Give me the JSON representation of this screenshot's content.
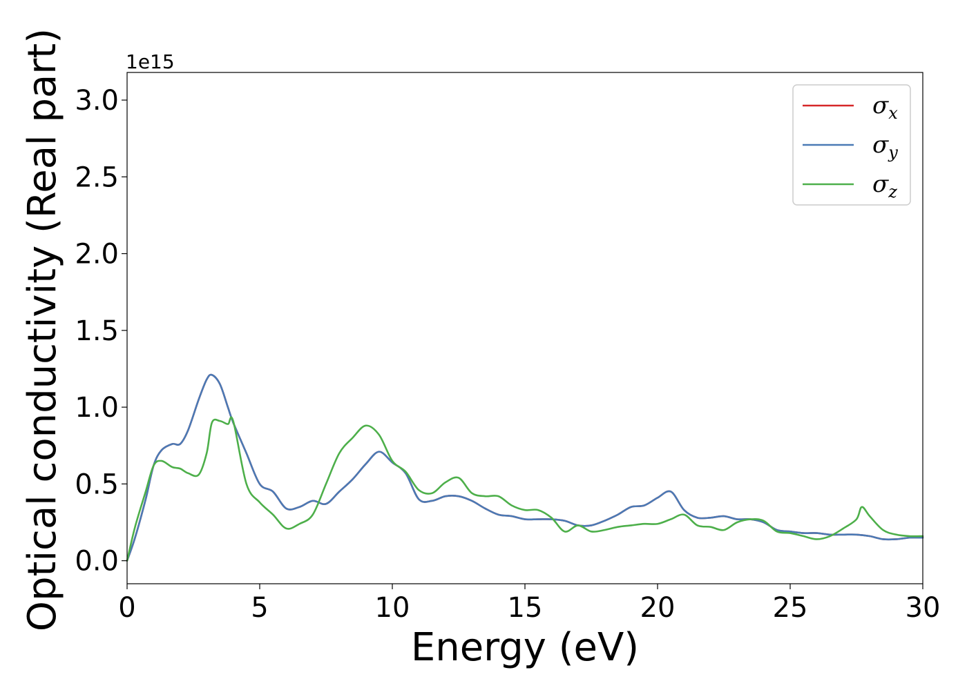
{
  "chart_data": {
    "type": "line",
    "xlabel": "Energy (eV)",
    "ylabel": "Optical conductivity (Real part)",
    "y_offset_label": "1e15",
    "xlim": [
      0,
      30
    ],
    "ylim": [
      -0.15,
      3.18
    ],
    "x_ticks": [
      0,
      5,
      10,
      15,
      20,
      25,
      30
    ],
    "x_tick_labels": [
      "0",
      "5",
      "10",
      "15",
      "20",
      "25",
      "30"
    ],
    "y_ticks": [
      0.0,
      0.5,
      1.0,
      1.5,
      2.0,
      2.5,
      3.0
    ],
    "y_tick_labels": [
      "0.0",
      "0.5",
      "1.0",
      "1.5",
      "2.0",
      "2.5",
      "3.0"
    ],
    "grid": false,
    "legend_position": "top-right",
    "series": [
      {
        "name": "σx",
        "symbol": "σ",
        "subscript": "x",
        "color": "#d62728",
        "x": [
          0,
          0.3,
          0.7,
          1.0,
          1.3,
          1.7,
          2.0,
          2.3,
          2.7,
          3.0,
          3.2,
          3.5,
          3.8,
          4.0,
          4.5,
          5.0,
          5.5,
          6.0,
          6.5,
          7.0,
          7.5,
          8.0,
          8.5,
          9.0,
          9.5,
          10.0,
          10.5,
          11.0,
          11.5,
          12.0,
          12.5,
          13.0,
          13.5,
          14.0,
          14.5,
          15.0,
          15.5,
          16.0,
          16.5,
          17.0,
          17.5,
          18.0,
          18.5,
          19.0,
          19.5,
          20.0,
          20.5,
          21.0,
          21.5,
          22.0,
          22.5,
          23.0,
          23.5,
          24.0,
          24.5,
          25.0,
          25.5,
          26.0,
          26.5,
          27.0,
          27.5,
          28.0,
          28.5,
          29.0,
          29.5,
          30.0
        ],
        "y": [
          0.0,
          0.15,
          0.4,
          0.62,
          0.72,
          0.76,
          0.76,
          0.85,
          1.05,
          1.18,
          1.21,
          1.15,
          1.0,
          0.9,
          0.7,
          0.5,
          0.45,
          0.34,
          0.35,
          0.39,
          0.37,
          0.45,
          0.53,
          0.63,
          0.71,
          0.64,
          0.57,
          0.4,
          0.39,
          0.42,
          0.42,
          0.39,
          0.34,
          0.3,
          0.29,
          0.27,
          0.27,
          0.27,
          0.26,
          0.23,
          0.23,
          0.26,
          0.3,
          0.35,
          0.36,
          0.41,
          0.45,
          0.33,
          0.28,
          0.28,
          0.29,
          0.27,
          0.27,
          0.25,
          0.2,
          0.19,
          0.18,
          0.18,
          0.17,
          0.17,
          0.17,
          0.16,
          0.14,
          0.14,
          0.15,
          0.15
        ]
      },
      {
        "name": "σy",
        "symbol": "σ",
        "subscript": "y",
        "color": "#4a7ab5",
        "x": [
          0,
          0.3,
          0.7,
          1.0,
          1.3,
          1.7,
          2.0,
          2.3,
          2.7,
          3.0,
          3.2,
          3.5,
          3.8,
          4.0,
          4.5,
          5.0,
          5.5,
          6.0,
          6.5,
          7.0,
          7.5,
          8.0,
          8.5,
          9.0,
          9.5,
          10.0,
          10.5,
          11.0,
          11.5,
          12.0,
          12.5,
          13.0,
          13.5,
          14.0,
          14.5,
          15.0,
          15.5,
          16.0,
          16.5,
          17.0,
          17.5,
          18.0,
          18.5,
          19.0,
          19.5,
          20.0,
          20.5,
          21.0,
          21.5,
          22.0,
          22.5,
          23.0,
          23.5,
          24.0,
          24.5,
          25.0,
          25.5,
          26.0,
          26.5,
          27.0,
          27.5,
          28.0,
          28.5,
          29.0,
          29.5,
          30.0
        ],
        "y": [
          0.0,
          0.15,
          0.4,
          0.62,
          0.72,
          0.76,
          0.76,
          0.85,
          1.05,
          1.18,
          1.21,
          1.15,
          1.0,
          0.9,
          0.7,
          0.5,
          0.45,
          0.34,
          0.35,
          0.39,
          0.37,
          0.45,
          0.53,
          0.63,
          0.71,
          0.64,
          0.57,
          0.4,
          0.39,
          0.42,
          0.42,
          0.39,
          0.34,
          0.3,
          0.29,
          0.27,
          0.27,
          0.27,
          0.26,
          0.23,
          0.23,
          0.26,
          0.3,
          0.35,
          0.36,
          0.41,
          0.45,
          0.33,
          0.28,
          0.28,
          0.29,
          0.27,
          0.27,
          0.25,
          0.2,
          0.19,
          0.18,
          0.18,
          0.17,
          0.17,
          0.17,
          0.16,
          0.14,
          0.14,
          0.15,
          0.15
        ]
      },
      {
        "name": "σz",
        "symbol": "σ",
        "subscript": "z",
        "color": "#4daf4a",
        "x": [
          0,
          0.3,
          0.7,
          1.0,
          1.3,
          1.7,
          2.0,
          2.3,
          2.7,
          3.0,
          3.2,
          3.5,
          3.8,
          4.0,
          4.5,
          5.0,
          5.5,
          6.0,
          6.5,
          7.0,
          7.5,
          8.0,
          8.5,
          9.0,
          9.5,
          10.0,
          10.5,
          11.0,
          11.5,
          12.0,
          12.5,
          13.0,
          13.5,
          14.0,
          14.5,
          15.0,
          15.5,
          16.0,
          16.5,
          17.0,
          17.5,
          18.0,
          18.5,
          19.0,
          19.5,
          20.0,
          20.5,
          21.0,
          21.5,
          22.0,
          22.5,
          23.0,
          23.5,
          24.0,
          24.5,
          25.0,
          25.5,
          26.0,
          26.5,
          27.0,
          27.5,
          27.7,
          28.0,
          28.5,
          29.0,
          29.5,
          30.0
        ],
        "y": [
          0.0,
          0.22,
          0.45,
          0.62,
          0.65,
          0.61,
          0.6,
          0.57,
          0.56,
          0.7,
          0.9,
          0.91,
          0.89,
          0.91,
          0.5,
          0.38,
          0.3,
          0.21,
          0.24,
          0.3,
          0.5,
          0.7,
          0.8,
          0.88,
          0.82,
          0.65,
          0.58,
          0.46,
          0.44,
          0.51,
          0.54,
          0.44,
          0.42,
          0.42,
          0.36,
          0.33,
          0.33,
          0.28,
          0.19,
          0.23,
          0.19,
          0.2,
          0.22,
          0.23,
          0.24,
          0.24,
          0.27,
          0.3,
          0.23,
          0.22,
          0.2,
          0.25,
          0.27,
          0.26,
          0.19,
          0.18,
          0.16,
          0.14,
          0.16,
          0.21,
          0.27,
          0.35,
          0.29,
          0.2,
          0.17,
          0.16,
          0.16
        ]
      }
    ]
  }
}
